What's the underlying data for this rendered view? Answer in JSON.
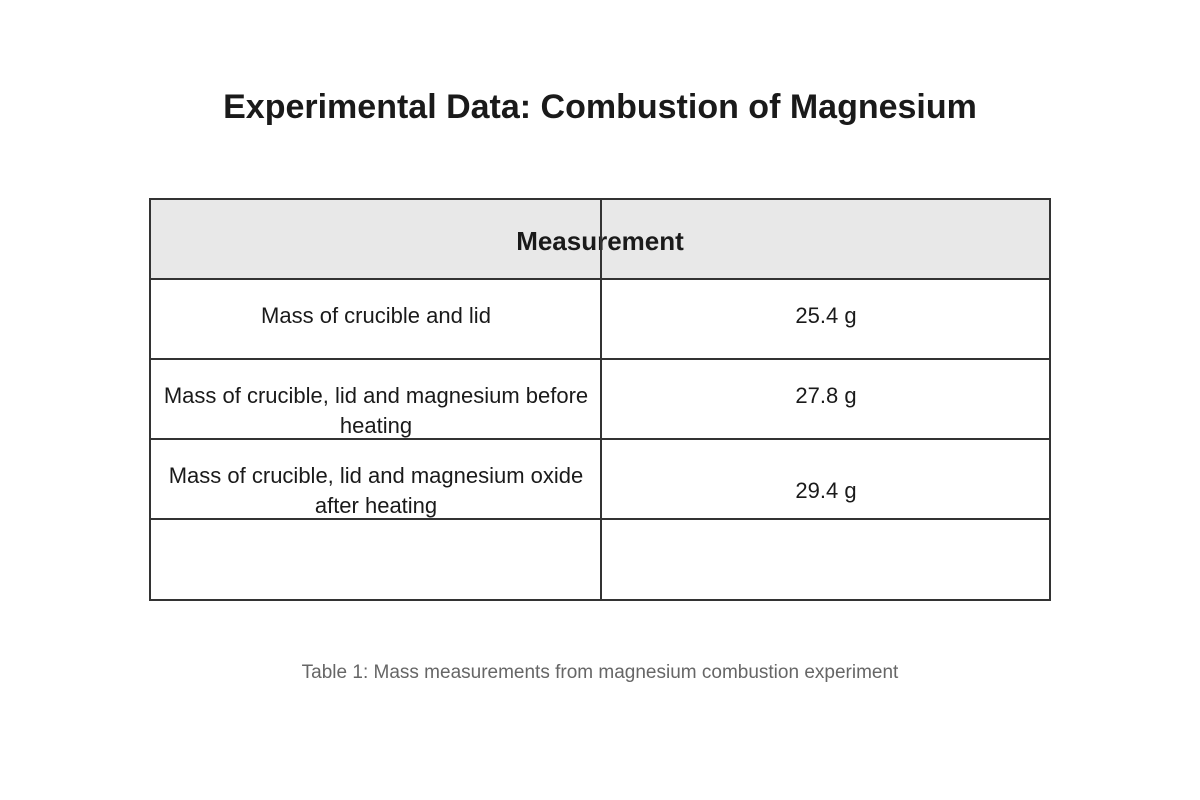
{
  "title": "Experimental Data: Combustion of Magnesium",
  "table": {
    "header": "Measurement",
    "rows": [
      {
        "label": "Mass of crucible and lid",
        "value": "25.4 g"
      },
      {
        "label": "Mass of crucible, lid and magnesium before heating",
        "value": "27.8 g"
      },
      {
        "label": "Mass of crucible, lid and magnesium oxide after heating",
        "value": "29.4 g"
      },
      {
        "label": "",
        "value": ""
      }
    ]
  },
  "caption": "Table 1: Mass measurements from magnesium combustion experiment"
}
